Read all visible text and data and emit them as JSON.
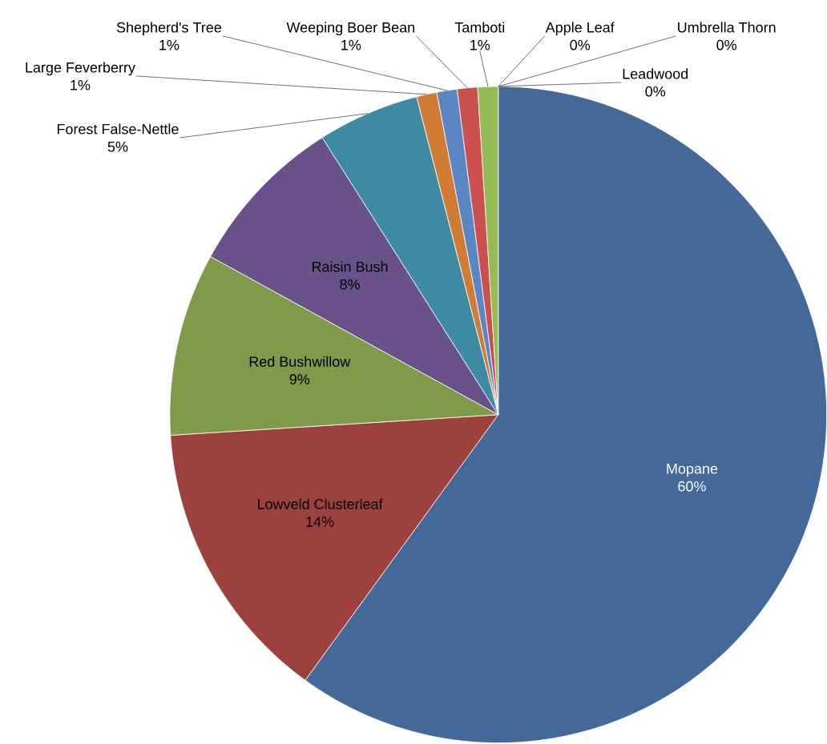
{
  "chart_data": {
    "type": "pie",
    "categories": [
      "Mopane",
      "Lowveld Clusterleaf",
      "Red Bushwillow",
      "Raisin Bush",
      "Forest False-Nettle",
      "Large Feverberry",
      "Shepherd's Tree",
      "Weeping Boer Bean",
      "Tamboti",
      "Apple Leaf",
      "Umbrella Thorn",
      "Leadwood"
    ],
    "values": [
      60,
      14,
      9,
      8,
      5,
      1,
      1,
      1,
      1,
      0,
      0,
      0
    ],
    "value_labels": [
      "60%",
      "14%",
      "9%",
      "8%",
      "5%",
      "1%",
      "1%",
      "1%",
      "1%",
      "0%",
      "0%",
      "0%"
    ],
    "colors": [
      "#436998",
      "#9c413e",
      "#7f9a48",
      "#69528a",
      "#3c8ba3",
      "#d07c34",
      "#5a86c4",
      "#c9504d",
      "#96bb55",
      "#8064a2",
      "#4bacc6",
      "#f79646"
    ]
  }
}
